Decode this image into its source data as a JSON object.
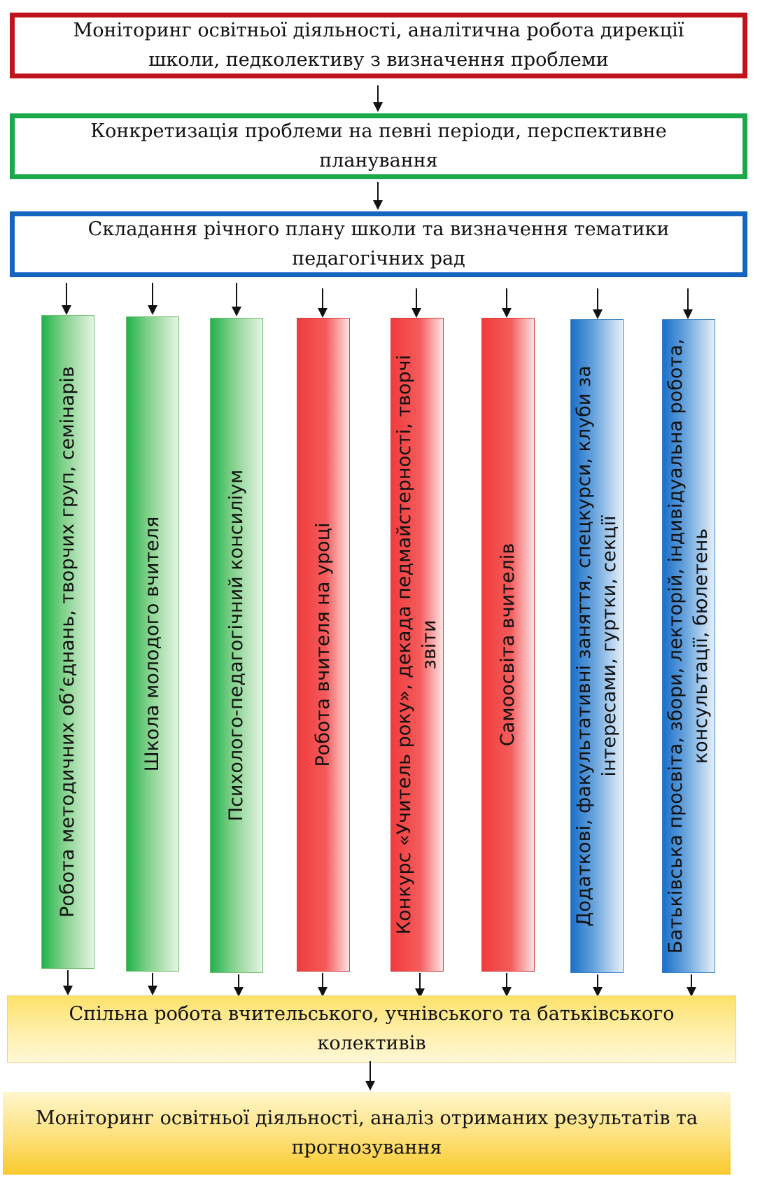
{
  "boxes": {
    "monitoring": "Моніторинг освітньої діяльності, аналітична робота дирекції школи, педколективу з визначення проблеми",
    "concretization": "Конкретизація проблеми на певні періоди, перспективне планування",
    "annual_plan": "Складання річного плану школи та визначення тематики педагогічних рад"
  },
  "columns": [
    {
      "label": "Робота методичних об’єднань, творчих груп, семінарів",
      "color": "green"
    },
    {
      "label": "Школа молодого вчителя",
      "color": "green"
    },
    {
      "label": "Психолого-педагогічний консиліум",
      "color": "green"
    },
    {
      "label": "Робота вчителя на уроці",
      "color": "red"
    },
    {
      "label": "Конкурс «Учитель року», декада педмайстерності, творчі звіти",
      "color": "red"
    },
    {
      "label": "Самоосвіта вчителів",
      "color": "red"
    },
    {
      "label": "Додаткові, факультативні заняття, спецкурси, клуби за інтересами, гуртки, секції",
      "color": "blue"
    },
    {
      "label": "Батьківська просвіта, збори, лекторій, індивідуальна робота, консультації, бюлетень",
      "color": "blue"
    }
  ],
  "joint_work": "Спільна робота вчительського, учнівського та батьківського колективів",
  "final_monitoring": "Моніторинг освітньої діяльності, аналіз отриманих результатів та прогнозування",
  "colors": {
    "box1_border": "#c0141c",
    "box2_border": "#1aa84a",
    "box3_border": "#1565c0",
    "green": "#22b14c",
    "red": "#f13c3c",
    "blue": "#1a6fc9",
    "yellow": "#fde16a"
  }
}
